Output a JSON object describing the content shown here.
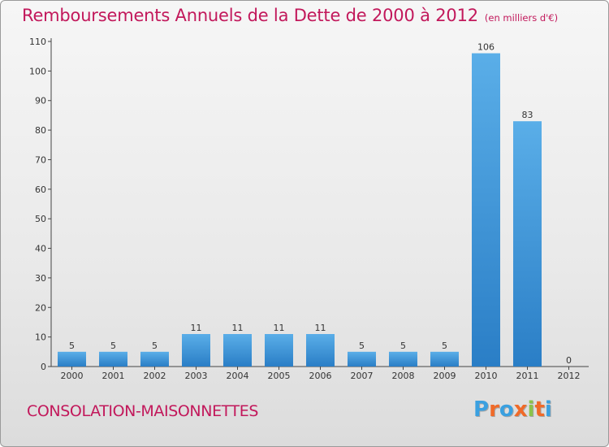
{
  "header": {
    "title": "Remboursements Annuels de la Dette de 2000 à 2012",
    "unit": "(en milliers d'€)"
  },
  "footer": {
    "commune": "CONSOLATION-MAISONNETTES",
    "logo_letters": [
      "P",
      "r",
      "o",
      "x",
      "i",
      "t",
      "i"
    ]
  },
  "colors": {
    "title": "#c2185b",
    "bar_top": "#5aaee8",
    "bar_bottom": "#2a7ec6",
    "logo": [
      "#3aa0e0",
      "#f06a28",
      "#3aa0e0",
      "#f06a28",
      "#8bc34a",
      "#f06a28",
      "#3aa0e0"
    ]
  },
  "chart_data": {
    "type": "bar",
    "title": "Remboursements Annuels de la Dette de 2000 à 2012",
    "categories": [
      "2000",
      "2001",
      "2002",
      "2003",
      "2004",
      "2005",
      "2006",
      "2007",
      "2008",
      "2009",
      "2010",
      "2011",
      "2012"
    ],
    "values": [
      5,
      5,
      5,
      11,
      11,
      11,
      11,
      5,
      5,
      5,
      106,
      83,
      0
    ],
    "value_labels": [
      "5",
      "5",
      "5",
      "11",
      "11",
      "11",
      "11",
      "5",
      "5",
      "5",
      "106",
      "83",
      "0"
    ],
    "yticks": [
      0,
      10,
      20,
      30,
      40,
      50,
      60,
      70,
      80,
      90,
      100,
      110
    ],
    "ylim": [
      0,
      110
    ],
    "xlabel": "",
    "ylabel": "",
    "grid": false,
    "legend": "none"
  }
}
